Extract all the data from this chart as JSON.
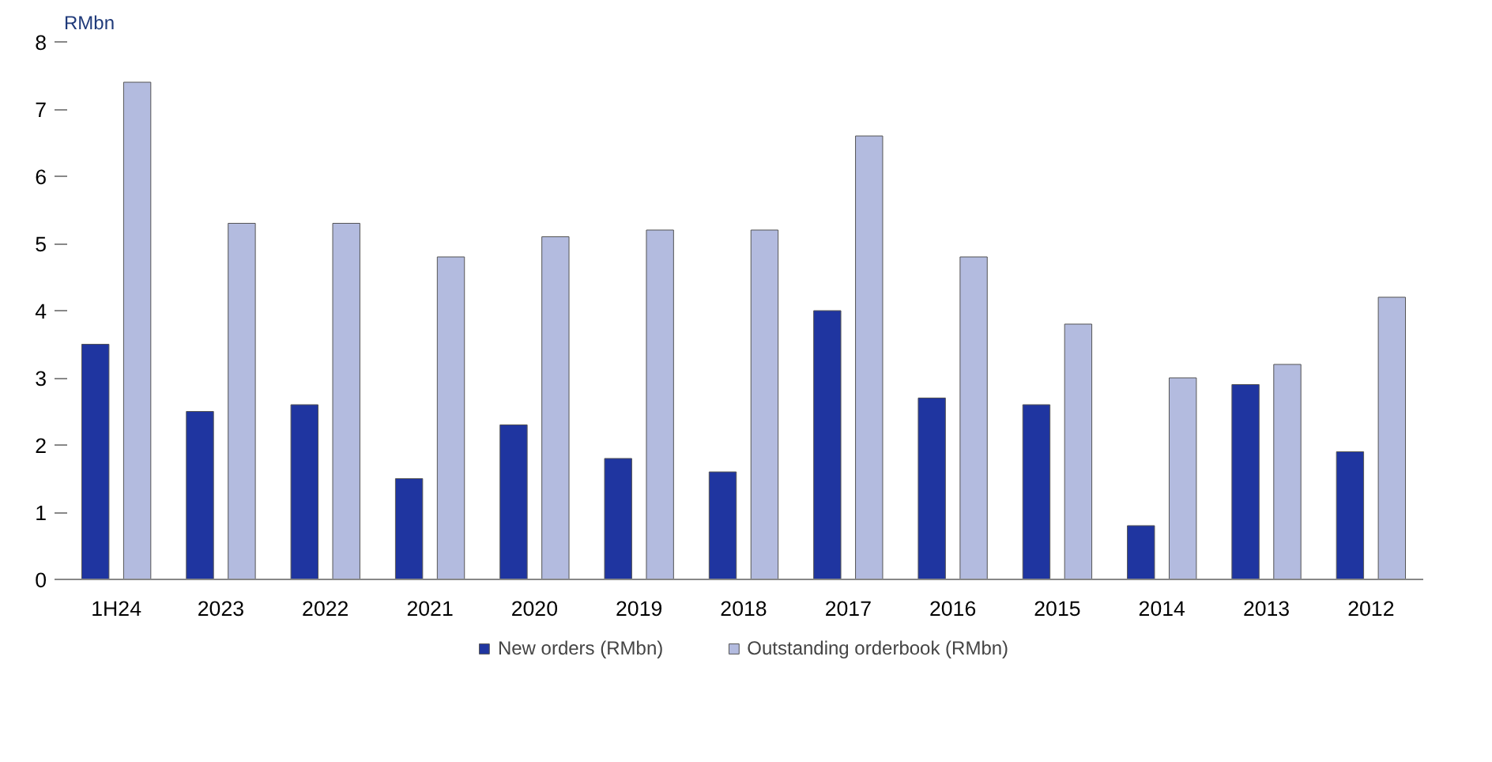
{
  "chart_data": {
    "type": "bar",
    "ylabel": "RMbn",
    "categories": [
      "1H24",
      "2023",
      "2022",
      "2021",
      "2020",
      "2019",
      "2018",
      "2017",
      "2016",
      "2015",
      "2014",
      "2013",
      "2012"
    ],
    "series": [
      {
        "name": "New orders (RMbn)",
        "color": "#1f35a0",
        "values": [
          3.5,
          2.5,
          2.6,
          1.5,
          2.3,
          1.8,
          1.6,
          4.0,
          2.7,
          2.6,
          0.8,
          2.9,
          1.9
        ]
      },
      {
        "name": "Outstanding orderbook (RMbn)",
        "color": "#b3bbdf",
        "values": [
          7.4,
          5.3,
          5.3,
          4.8,
          5.1,
          5.2,
          5.2,
          6.6,
          4.8,
          3.8,
          3.0,
          3.2,
          4.2
        ]
      }
    ],
    "ylim": [
      0,
      8
    ],
    "yticks": [
      0,
      1,
      2,
      3,
      4,
      5,
      6,
      7,
      8
    ],
    "grid": false,
    "legend": "bottom"
  }
}
